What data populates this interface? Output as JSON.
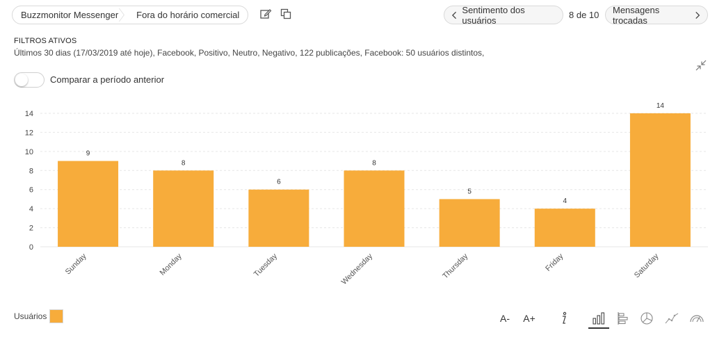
{
  "breadcrumb": {
    "items": [
      "Buzzmonitor Messenger",
      "Fora do horário comercial"
    ]
  },
  "header": {
    "edit_icon": "edit-icon",
    "copy_icon": "copy-icon",
    "prev_label": "Sentimento dos usuários",
    "pager_text": "8 de 10",
    "next_label": "Mensagens trocadas"
  },
  "filters": {
    "title": "FILTROS ATIVOS",
    "text": "Últimos 30 dias (17/03/2019 até hoje), Facebook, Positivo, Neutro, Negativo, 122 publicações, Facebook: 50 usuários distintos,"
  },
  "compare": {
    "label": "Comparar a período anterior",
    "enabled": false
  },
  "colors": {
    "bar": "#f7ac3b",
    "grid": "#e6e6e6"
  },
  "chart_data": {
    "type": "bar",
    "categories": [
      "Sunday",
      "Monday",
      "Tuesday",
      "Wednesday",
      "Thursday",
      "Friday",
      "Saturday"
    ],
    "series": [
      {
        "name": "Usuários",
        "values": [
          9,
          8,
          6,
          8,
          5,
          4,
          14
        ]
      }
    ],
    "ylim": [
      0,
      14
    ],
    "yticks": [
      0,
      2,
      4,
      6,
      8,
      10,
      12,
      14
    ],
    "grid": true,
    "legend": "bottom-left",
    "title": "",
    "xlabel": "",
    "ylabel": ""
  },
  "legend": {
    "label": "Usuários"
  },
  "toolbar": {
    "font_decrease": "A-",
    "font_increase": "A+",
    "icons": [
      "info-icon",
      "vertical-bar-chart-icon",
      "horizontal-bar-chart-icon",
      "pie-chart-icon",
      "line-chart-icon",
      "gauge-icon"
    ],
    "active": "vertical-bar-chart-icon"
  }
}
